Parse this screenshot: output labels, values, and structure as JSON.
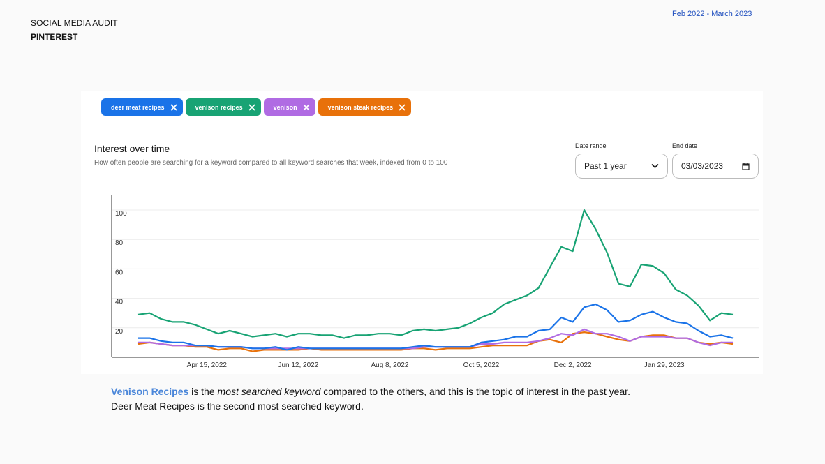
{
  "header": {
    "title": "SOCIAL MEDIA AUDIT",
    "subtitle": "PINTEREST",
    "date_range": "Feb 2022 - March 2023"
  },
  "chips": [
    {
      "label": "deer meat recipes",
      "color": "#1a73e8"
    },
    {
      "label": "venison recipes",
      "color": "#18a374"
    },
    {
      "label": "venison",
      "color": "#b06be3"
    },
    {
      "label": "venison steak recipes",
      "color": "#e8710a"
    }
  ],
  "section": {
    "title": "Interest over time",
    "subtitle": "How often people are searching for a keyword compared to all keyword searches that week, indexed from 0 to 100"
  },
  "controls": {
    "date_range_label": "Date range",
    "date_range_value": "Past 1 year",
    "end_date_label": "End date",
    "end_date_value": "03/03/2023"
  },
  "chart_data": {
    "type": "line",
    "title": "",
    "xlabel": "",
    "ylabel": "",
    "ylim": [
      0,
      100
    ],
    "y_ticks": [
      20,
      40,
      60,
      80,
      100
    ],
    "x_tick_labels": [
      "Apr 15, 2022",
      "Jun 12, 2022",
      "Aug 8, 2022",
      "Oct 5, 2022",
      "Dec 2, 2022",
      "Jan 29, 2023"
    ],
    "x_tick_index": [
      6,
      14,
      22,
      30,
      38,
      46
    ],
    "grid": true,
    "legend": "none",
    "series": [
      {
        "color": "#18a374",
        "values": [
          29,
          30,
          26,
          24,
          24,
          22,
          19,
          16,
          18,
          16,
          14,
          15,
          16,
          14,
          16,
          16,
          15,
          15,
          13,
          15,
          15,
          16,
          16,
          15,
          18,
          19,
          18,
          19,
          20,
          23,
          27,
          30,
          36,
          39,
          42,
          47,
          61,
          75,
          72,
          100,
          87,
          71,
          50,
          48,
          63,
          62,
          57,
          46,
          42,
          35,
          25,
          30,
          29
        ]
      },
      {
        "color": "#1a73e8",
        "values": [
          13,
          13,
          11,
          10,
          10,
          8,
          8,
          7,
          7,
          7,
          6,
          6,
          7,
          5,
          7,
          6,
          6,
          6,
          6,
          6,
          6,
          6,
          6,
          6,
          7,
          8,
          7,
          7,
          7,
          7,
          10,
          11,
          12,
          14,
          14,
          18,
          19,
          27,
          24,
          34,
          36,
          32,
          24,
          25,
          29,
          31,
          27,
          24,
          23,
          18,
          14,
          15,
          13
        ]
      },
      {
        "color": "#b06be3",
        "values": [
          10,
          10,
          9,
          8,
          8,
          8,
          8,
          7,
          7,
          7,
          6,
          6,
          6,
          6,
          6,
          6,
          6,
          6,
          6,
          6,
          6,
          6,
          6,
          6,
          6,
          7,
          7,
          7,
          7,
          7,
          9,
          9,
          10,
          10,
          10,
          11,
          13,
          16,
          15,
          19,
          16,
          16,
          14,
          11,
          14,
          14,
          14,
          13,
          13,
          10,
          8,
          10,
          10
        ]
      },
      {
        "color": "#e8710a",
        "values": [
          9,
          10,
          9,
          8,
          8,
          7,
          7,
          5,
          6,
          6,
          4,
          5,
          5,
          5,
          5,
          6,
          5,
          5,
          5,
          5,
          5,
          5,
          5,
          5,
          6,
          6,
          5,
          6,
          6,
          6,
          7,
          8,
          8,
          8,
          8,
          11,
          12,
          10,
          16,
          17,
          16,
          14,
          12,
          11,
          14,
          15,
          15,
          13,
          13,
          10,
          9,
          10,
          9
        ]
      }
    ]
  },
  "caption": {
    "part1": "Venison Recipes",
    "part2": " is the ",
    "part3": "most searched keyword",
    "part4": " compared to the others, and this is the topic of interest in the past year.",
    "line2": "Deer Meat Recipes is the second most searched keyword."
  }
}
